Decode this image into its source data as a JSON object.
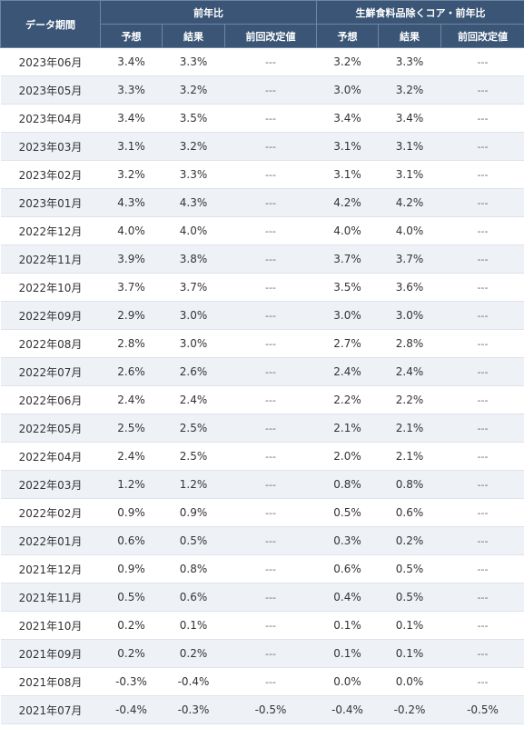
{
  "header": {
    "period": "データ期間",
    "group1": "前年比",
    "group2": "生鮮食料品除くコア・前年比",
    "sub": [
      "予想",
      "結果",
      "前回改定値",
      "予想",
      "結果",
      "前回改定値"
    ]
  },
  "rows": [
    [
      "2023年06月",
      "3.4%",
      "3.3%",
      "---",
      "3.2%",
      "3.3%",
      "---"
    ],
    [
      "2023年05月",
      "3.3%",
      "3.2%",
      "---",
      "3.0%",
      "3.2%",
      "---"
    ],
    [
      "2023年04月",
      "3.4%",
      "3.5%",
      "---",
      "3.4%",
      "3.4%",
      "---"
    ],
    [
      "2023年03月",
      "3.1%",
      "3.2%",
      "---",
      "3.1%",
      "3.1%",
      "---"
    ],
    [
      "2023年02月",
      "3.2%",
      "3.3%",
      "---",
      "3.1%",
      "3.1%",
      "---"
    ],
    [
      "2023年01月",
      "4.3%",
      "4.3%",
      "---",
      "4.2%",
      "4.2%",
      "---"
    ],
    [
      "2022年12月",
      "4.0%",
      "4.0%",
      "---",
      "4.0%",
      "4.0%",
      "---"
    ],
    [
      "2022年11月",
      "3.9%",
      "3.8%",
      "---",
      "3.7%",
      "3.7%",
      "---"
    ],
    [
      "2022年10月",
      "3.7%",
      "3.7%",
      "---",
      "3.5%",
      "3.6%",
      "---"
    ],
    [
      "2022年09月",
      "2.9%",
      "3.0%",
      "---",
      "3.0%",
      "3.0%",
      "---"
    ],
    [
      "2022年08月",
      "2.8%",
      "3.0%",
      "---",
      "2.7%",
      "2.8%",
      "---"
    ],
    [
      "2022年07月",
      "2.6%",
      "2.6%",
      "---",
      "2.4%",
      "2.4%",
      "---"
    ],
    [
      "2022年06月",
      "2.4%",
      "2.4%",
      "---",
      "2.2%",
      "2.2%",
      "---"
    ],
    [
      "2022年05月",
      "2.5%",
      "2.5%",
      "---",
      "2.1%",
      "2.1%",
      "---"
    ],
    [
      "2022年04月",
      "2.4%",
      "2.5%",
      "---",
      "2.0%",
      "2.1%",
      "---"
    ],
    [
      "2022年03月",
      "1.2%",
      "1.2%",
      "---",
      "0.8%",
      "0.8%",
      "---"
    ],
    [
      "2022年02月",
      "0.9%",
      "0.9%",
      "---",
      "0.5%",
      "0.6%",
      "---"
    ],
    [
      "2022年01月",
      "0.6%",
      "0.5%",
      "---",
      "0.3%",
      "0.2%",
      "---"
    ],
    [
      "2021年12月",
      "0.9%",
      "0.8%",
      "---",
      "0.6%",
      "0.5%",
      "---"
    ],
    [
      "2021年11月",
      "0.5%",
      "0.6%",
      "---",
      "0.4%",
      "0.5%",
      "---"
    ],
    [
      "2021年10月",
      "0.2%",
      "0.1%",
      "---",
      "0.1%",
      "0.1%",
      "---"
    ],
    [
      "2021年09月",
      "0.2%",
      "0.2%",
      "---",
      "0.1%",
      "0.1%",
      "---"
    ],
    [
      "2021年08月",
      "-0.3%",
      "-0.4%",
      "---",
      "0.0%",
      "0.0%",
      "---"
    ],
    [
      "2021年07月",
      "-0.4%",
      "-0.3%",
      "-0.5%",
      "-0.4%",
      "-0.2%",
      "-0.5%"
    ]
  ]
}
